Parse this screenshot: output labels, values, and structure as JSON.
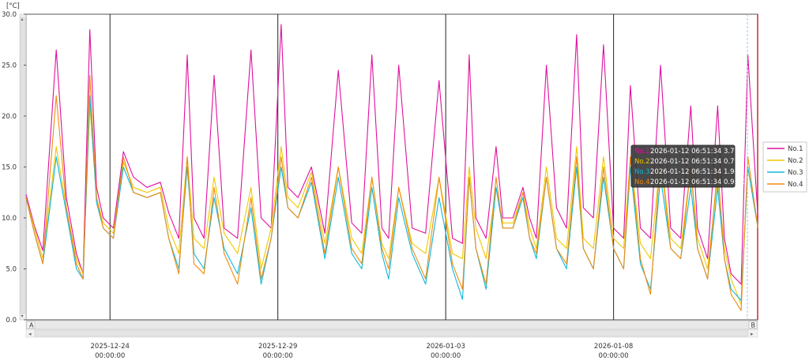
{
  "chart_data": {
    "type": "line",
    "unit": "[°C]",
    "ylim": [
      0,
      30
    ],
    "yticks": [
      "0.0",
      "5.0",
      "10.0",
      "15.0",
      "20.0",
      "25.0",
      "30.0"
    ],
    "x_range": [
      "2025-12-21 12:00",
      "2026-01-12 07:00"
    ],
    "xticks": [
      {
        "date": "2025-12-24",
        "time": "00:00:00"
      },
      {
        "date": "2025-12-29",
        "time": "00:00:00"
      },
      {
        "date": "2026-01-03",
        "time": "00:00:00"
      },
      {
        "date": "2026-01-08",
        "time": "00:00:00"
      }
    ],
    "cursor_markers": [
      "A",
      "B"
    ],
    "legend_position": "right",
    "series": [
      {
        "name": "No.1",
        "color": "#e0109e",
        "x": [
          0,
          0.25,
          0.5,
          0.9,
          1.2,
          1.5,
          1.7,
          1.9,
          2.1,
          2.3,
          2.6,
          2.9,
          3.2,
          3.6,
          4.0,
          4.25,
          4.55,
          4.8,
          5.0,
          5.3,
          5.6,
          5.9,
          6.3,
          6.7,
          7.0,
          7.3,
          7.6,
          7.8,
          8.1,
          8.5,
          8.9,
          9.3,
          9.7,
          10.0,
          10.3,
          10.6,
          10.8,
          11.1,
          11.5,
          11.9,
          12.3,
          12.7,
          13.0,
          13.2,
          13.4,
          13.7,
          14.0,
          14.2,
          14.5,
          14.8,
          15.0,
          15.2,
          15.5,
          15.8,
          16.1,
          16.4,
          16.6,
          16.9,
          17.2,
          17.5,
          17.8,
          18.0,
          18.3,
          18.6,
          18.9,
          19.2,
          19.5,
          19.8,
          20.0,
          20.3,
          20.6,
          20.8,
          21.0,
          21.3,
          21.5,
          21.8
        ],
        "y": [
          12.3,
          9.2,
          6.8,
          26.5,
          12,
          6.5,
          4.5,
          28.5,
          13,
          10,
          9,
          16.5,
          14,
          13,
          13.5,
          10.5,
          8,
          26,
          10,
          8,
          24,
          9,
          8,
          26.5,
          10,
          9,
          29,
          13,
          12,
          15,
          8.5,
          24.5,
          9.5,
          8.5,
          26,
          9,
          8,
          25,
          9,
          8.5,
          23.5,
          8,
          7.5,
          26,
          10,
          8,
          17,
          10,
          10,
          13,
          10,
          8,
          25,
          11,
          9,
          28,
          11,
          10,
          27,
          9,
          8,
          23,
          9,
          8,
          25,
          9,
          8,
          21,
          9,
          6,
          21,
          8,
          4.5,
          3.5,
          26,
          10
        ]
      },
      {
        "name": "No.2",
        "color": "#f0c800",
        "x": [
          0,
          0.25,
          0.5,
          0.9,
          1.2,
          1.5,
          1.7,
          1.9,
          2.1,
          2.3,
          2.6,
          2.9,
          3.2,
          3.6,
          4.0,
          4.25,
          4.55,
          4.8,
          5.0,
          5.3,
          5.6,
          5.9,
          6.3,
          6.7,
          7.0,
          7.3,
          7.6,
          7.8,
          8.1,
          8.5,
          8.9,
          9.3,
          9.7,
          10.0,
          10.3,
          10.6,
          10.8,
          11.1,
          11.5,
          11.9,
          12.3,
          12.7,
          13.0,
          13.2,
          13.4,
          13.7,
          14.0,
          14.2,
          14.5,
          14.8,
          15.0,
          15.2,
          15.5,
          15.8,
          16.1,
          16.4,
          16.6,
          16.9,
          17.2,
          17.5,
          17.8,
          18.0,
          18.3,
          18.6,
          18.9,
          19.2,
          19.5,
          19.8,
          20.0,
          20.3,
          20.6,
          20.8,
          21.0,
          21.3,
          21.5,
          21.8
        ],
        "y": [
          12,
          9,
          6,
          17,
          11,
          6,
          4.5,
          21,
          12,
          9.5,
          8.5,
          15.5,
          13,
          12.5,
          13,
          9,
          6.5,
          16,
          8,
          7,
          14,
          8.5,
          6.5,
          13,
          5,
          9,
          17,
          12,
          11,
          14.5,
          7.5,
          15,
          8,
          6.5,
          14,
          7.5,
          6,
          13,
          7.5,
          6.5,
          14,
          6.5,
          6,
          15,
          9,
          6,
          13,
          9.5,
          9.5,
          12.5,
          9,
          7,
          15,
          8,
          7,
          17,
          8,
          7,
          16,
          8,
          7,
          16,
          7.5,
          6,
          16,
          8,
          7,
          15,
          8,
          5,
          14,
          7,
          4,
          1.5,
          15,
          9
        ]
      },
      {
        "name": "No.3",
        "color": "#10b8d8",
        "x": [
          0,
          0.25,
          0.5,
          0.9,
          1.2,
          1.5,
          1.7,
          1.9,
          2.1,
          2.3,
          2.6,
          2.9,
          3.2,
          3.6,
          4.0,
          4.25,
          4.55,
          4.8,
          5.0,
          5.3,
          5.6,
          5.9,
          6.3,
          6.7,
          7.0,
          7.3,
          7.6,
          7.8,
          8.1,
          8.5,
          8.9,
          9.3,
          9.7,
          10.0,
          10.3,
          10.6,
          10.8,
          11.1,
          11.5,
          11.9,
          12.3,
          12.7,
          13.0,
          13.2,
          13.4,
          13.7,
          14.0,
          14.2,
          14.5,
          14.8,
          15.0,
          15.2,
          15.5,
          15.8,
          16.1,
          16.4,
          16.6,
          16.9,
          17.2,
          17.5,
          17.8,
          18.0,
          18.3,
          18.6,
          18.9,
          19.2,
          19.5,
          19.8,
          20.0,
          20.3,
          20.6,
          20.8,
          21.0,
          21.3,
          21.5,
          21.8
        ],
        "y": [
          12,
          8.5,
          5.5,
          16,
          10.5,
          5,
          4,
          22,
          11.5,
          9,
          8,
          15,
          12.5,
          12,
          12.5,
          8,
          5,
          15,
          6.5,
          5,
          12,
          7,
          4.5,
          11,
          3.5,
          8,
          15,
          11,
          10,
          13.5,
          6,
          14,
          6.5,
          5,
          13,
          6.5,
          4,
          12,
          6.5,
          3.5,
          12,
          5,
          2,
          14,
          7,
          3,
          13,
          9,
          9,
          12,
          8,
          6,
          14,
          7,
          5,
          15,
          7,
          5,
          14,
          7,
          5,
          15,
          5.5,
          3,
          14,
          7,
          6,
          13,
          7,
          4,
          13,
          6,
          3,
          1.9,
          15,
          9
        ]
      },
      {
        "name": "No.4",
        "color": "#f08c10",
        "x": [
          0,
          0.25,
          0.5,
          0.9,
          1.2,
          1.5,
          1.7,
          1.9,
          2.1,
          2.3,
          2.6,
          2.9,
          3.2,
          3.6,
          4.0,
          4.25,
          4.55,
          4.8,
          5.0,
          5.3,
          5.6,
          5.9,
          6.3,
          6.7,
          7.0,
          7.3,
          7.6,
          7.8,
          8.1,
          8.5,
          8.9,
          9.3,
          9.7,
          10.0,
          10.3,
          10.6,
          10.8,
          11.1,
          11.5,
          11.9,
          12.3,
          12.7,
          13.0,
          13.2,
          13.4,
          13.7,
          14.0,
          14.2,
          14.5,
          14.8,
          15.0,
          15.2,
          15.5,
          15.8,
          16.1,
          16.4,
          16.6,
          16.9,
          17.2,
          17.5,
          17.8,
          18.0,
          18.3,
          18.6,
          18.9,
          19.2,
          19.5,
          19.8,
          20.0,
          20.3,
          20.6,
          20.8,
          21.0,
          21.3,
          21.5,
          21.8
        ],
        "y": [
          12,
          8.5,
          5.5,
          22,
          11,
          5.5,
          4,
          24,
          12,
          9,
          8,
          16,
          12.5,
          12,
          12.5,
          8,
          4.5,
          16,
          5.5,
          4.5,
          13,
          6.5,
          3.5,
          12,
          4,
          8,
          16,
          11,
          10,
          14,
          6.5,
          15,
          7,
          5.5,
          14,
          7,
          5,
          13,
          7,
          4,
          14,
          5.5,
          3,
          14,
          7,
          3.5,
          14,
          9,
          9,
          12.5,
          8,
          6.5,
          14,
          7,
          5.5,
          16,
          7,
          5,
          15,
          7,
          5,
          16,
          6,
          2.5,
          16,
          7,
          6,
          15,
          7,
          4,
          15,
          6,
          2.5,
          0.9,
          16,
          9
        ]
      }
    ]
  },
  "tooltip": {
    "rows": [
      {
        "name": "No.1",
        "text": "2026-01-12 06:51:34 3.7 °C",
        "color": "#e0109e"
      },
      {
        "name": "No.2",
        "text": "2026-01-12 06:51:34 0.7 °C",
        "color": "#f0c800"
      },
      {
        "name": "No.3",
        "text": "2026-01-12 06:51:34 1.9 °C",
        "color": "#10b8d8"
      },
      {
        "name": "No.4",
        "text": "2026-01-12 06:51:34 0.9 °C",
        "color": "#f08c10"
      }
    ]
  }
}
